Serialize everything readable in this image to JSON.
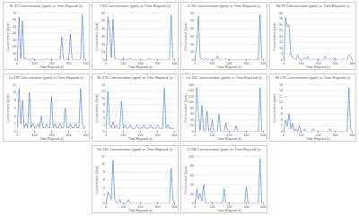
{
  "chart_data": [
    {
      "type": "line",
      "title": "Sc 45 Concentration (ppm) vs Time Elapsed (s)",
      "x_label": "Time Elapsed (s)",
      "y_label": "Concentration (ppm)",
      "color": "#4472c4",
      "grid": true,
      "x": [
        0,
        10,
        20,
        30,
        40,
        50,
        60,
        70,
        80,
        90,
        100,
        110,
        120,
        130,
        140,
        150,
        160,
        170,
        180,
        190,
        200,
        210,
        220,
        230,
        240,
        250,
        260,
        270,
        280,
        290,
        300,
        310,
        320,
        330,
        340,
        350,
        360,
        370,
        380,
        390,
        400
      ],
      "values": [
        0,
        64,
        2,
        58,
        1,
        3,
        0,
        1,
        0,
        2,
        1,
        0,
        1,
        0,
        0,
        1,
        0,
        2,
        0,
        0,
        1,
        0,
        0,
        1,
        0,
        0,
        34,
        1,
        0,
        2,
        0,
        38,
        1,
        0,
        0,
        1,
        0,
        2,
        67,
        1,
        0
      ],
      "xlim": [
        0,
        400
      ],
      "xticks": [
        0,
        100,
        200,
        300,
        400
      ],
      "ylim": [
        0,
        70
      ],
      "yticks": [
        0,
        10,
        20,
        30,
        40,
        50,
        60,
        70
      ]
    },
    {
      "type": "line",
      "title": "Y 89 Concentration (ppm) vs Time Elapsed (s)",
      "x_label": "Time Elapsed (s)",
      "y_label": "Concentration (ppm)",
      "color": "#4472c4",
      "grid": true,
      "x": [
        0,
        10,
        20,
        30,
        40,
        50,
        60,
        70,
        80,
        90,
        100,
        110,
        120,
        130,
        140,
        150,
        160,
        170,
        180,
        190,
        200,
        210,
        220,
        230,
        240,
        250,
        260,
        270,
        280,
        290,
        300,
        310,
        320,
        330,
        340,
        350,
        360,
        370,
        380,
        390,
        400
      ],
      "values": [
        0,
        55,
        40,
        3,
        52,
        2,
        1,
        0,
        1,
        0,
        3,
        0,
        1,
        0,
        2,
        0,
        0,
        1,
        0,
        0,
        0,
        1,
        0,
        0,
        0,
        2,
        0,
        1,
        0,
        0,
        0,
        1,
        0,
        0,
        0,
        1,
        0,
        0,
        57,
        2,
        0
      ],
      "xlim": [
        0,
        400
      ],
      "xticks": [
        0,
        100,
        200,
        300,
        400
      ],
      "ylim": [
        0,
        60
      ],
      "yticks": [
        0,
        10,
        20,
        30,
        40,
        50,
        60
      ]
    },
    {
      "type": "line",
      "title": "Zr 90 Concentration (ppm) vs Time Elapsed (s)",
      "x_label": "Time Elapsed (s)",
      "y_label": "Concentration (ppm)",
      "color": "#4472c4",
      "grid": true,
      "x": [
        0,
        10,
        20,
        30,
        40,
        50,
        60,
        70,
        80,
        90,
        100,
        110,
        120,
        130,
        140,
        150,
        160,
        170,
        180,
        190,
        200,
        210,
        220,
        230,
        240,
        250,
        260,
        270,
        280,
        290,
        300,
        310,
        320,
        330,
        340,
        350,
        360,
        370,
        380,
        390,
        400
      ],
      "values": [
        0,
        20,
        56,
        3,
        1,
        0,
        2,
        0,
        1,
        0,
        0,
        1,
        0,
        5,
        0,
        1,
        0,
        0,
        2,
        0,
        0,
        1,
        0,
        0,
        0,
        1,
        0,
        0,
        1,
        0,
        0,
        0,
        1,
        0,
        0,
        0,
        1,
        0,
        58,
        1,
        0
      ],
      "xlim": [
        0,
        400
      ],
      "xticks": [
        0,
        100,
        200,
        300,
        400
      ],
      "ylim": [
        0,
        60
      ],
      "yticks": [
        0,
        10,
        20,
        30,
        40,
        50,
        60
      ]
    },
    {
      "type": "line",
      "title": "Nb 93 Concentration (ppm) vs Time Elapsed (s)",
      "x_label": "Time Elapsed (s)",
      "y_label": "Concentration (ppm)",
      "color": "#4472c4",
      "grid": true,
      "x": [
        0,
        10,
        20,
        30,
        40,
        50,
        60,
        70,
        80,
        90,
        100,
        110,
        120,
        130,
        140,
        150,
        160,
        170,
        180,
        190,
        200,
        210,
        220,
        230,
        240,
        250,
        260,
        270,
        280,
        290,
        300,
        310,
        320,
        330,
        340,
        350,
        360,
        370,
        380,
        390,
        400
      ],
      "values": [
        0,
        36,
        28,
        30,
        5,
        2,
        1,
        0,
        4,
        1,
        0,
        0,
        2,
        0,
        3,
        0,
        0,
        1,
        0,
        0,
        1,
        0,
        0,
        0,
        3,
        0,
        0,
        1,
        0,
        0,
        2,
        0,
        0,
        0,
        0,
        1,
        0,
        0,
        4,
        3,
        0
      ],
      "xlim": [
        0,
        400
      ],
      "xticks": [
        0,
        100,
        200,
        300,
        400
      ],
      "ylim": [
        0,
        40
      ],
      "yticks": [
        0,
        5,
        10,
        15,
        20,
        25,
        30,
        35,
        40
      ]
    },
    {
      "type": "line",
      "title": "La 139 Concentration (ppm) vs Time Elapsed (s)",
      "x_label": "Time Elapsed (s)",
      "y_label": "Concentration (ppm)",
      "color": "#4472c4",
      "grid": true,
      "x": [
        0,
        10,
        20,
        30,
        40,
        50,
        60,
        70,
        80,
        90,
        100,
        110,
        120,
        130,
        140,
        150,
        160,
        170,
        180,
        190,
        200,
        210,
        220,
        230,
        240,
        250,
        260,
        270,
        280,
        290,
        300,
        310,
        320,
        330,
        340,
        350,
        360,
        370,
        380,
        390,
        400
      ],
      "values": [
        1,
        11,
        2,
        8,
        1,
        2,
        1,
        10,
        1,
        2,
        1,
        1,
        2,
        1,
        4,
        1,
        1,
        2,
        1,
        1,
        9,
        1,
        2,
        1,
        1,
        2,
        1,
        1,
        6,
        1,
        1,
        2,
        1,
        1,
        2,
        1,
        1,
        11,
        2,
        1,
        1
      ],
      "xlim": [
        0,
        400
      ],
      "xticks": [
        0,
        100,
        200,
        300,
        400
      ],
      "ylim": [
        0,
        12
      ],
      "yticks": [
        0,
        2,
        4,
        6,
        8,
        10,
        12
      ]
    },
    {
      "type": "line",
      "title": "Eu 153 Concentration (ppm) vs Time Elapsed (s)",
      "x_label": "Time Elapsed (s)",
      "y_label": "Concentration (ppm)",
      "color": "#4472c4",
      "grid": true,
      "x": [
        0,
        10,
        20,
        30,
        40,
        50,
        60,
        70,
        80,
        90,
        100,
        110,
        120,
        130,
        140,
        150,
        160,
        170,
        180,
        190,
        200,
        210,
        220,
        230,
        240,
        250,
        260,
        270,
        280,
        290,
        300,
        310,
        320,
        330,
        340,
        350,
        360,
        370,
        380,
        390,
        400
      ],
      "values": [
        1,
        12,
        2,
        1,
        3,
        1,
        2,
        1,
        1,
        9,
        1,
        2,
        1,
        1,
        2,
        1,
        1,
        1,
        2,
        1,
        1,
        1,
        2,
        1,
        1,
        1,
        2,
        1,
        1,
        1,
        2,
        1,
        1,
        1,
        13,
        1,
        2,
        1,
        1,
        1,
        1
      ],
      "xlim": [
        0,
        400
      ],
      "xticks": [
        0,
        100,
        200,
        300,
        400
      ],
      "ylim": [
        0,
        14
      ],
      "yticks": [
        0,
        2,
        4,
        6,
        8,
        10,
        12,
        14
      ]
    },
    {
      "type": "line",
      "title": "Ce 140 Concentration (ppm) vs Time Elapsed (s)",
      "x_label": "Time Elapsed (s)",
      "y_label": "Concentration (ppm)",
      "color": "#4472c4",
      "grid": true,
      "x": [
        0,
        10,
        20,
        30,
        40,
        50,
        60,
        70,
        80,
        90,
        100,
        110,
        120,
        130,
        140,
        150,
        160,
        170,
        180,
        190,
        200,
        210,
        220,
        230,
        240,
        250,
        260,
        270,
        280,
        290,
        300,
        310,
        320,
        330,
        340,
        350,
        360,
        370,
        380,
        390,
        400
      ],
      "values": [
        0,
        150,
        60,
        5,
        90,
        3,
        2,
        70,
        1,
        0,
        40,
        2,
        0,
        1,
        60,
        0,
        1,
        0,
        30,
        1,
        0,
        0,
        1,
        0,
        20,
        0,
        1,
        0,
        0,
        2,
        0,
        1,
        0,
        0,
        0,
        1,
        0,
        0,
        150,
        1,
        0
      ],
      "xlim": [
        0,
        400
      ],
      "xticks": [
        0,
        100,
        200,
        300,
        400
      ],
      "ylim": [
        0,
        160
      ],
      "yticks": [
        0,
        20,
        40,
        60,
        80,
        100,
        120,
        140,
        160
      ]
    },
    {
      "type": "line",
      "title": "Hf 178 Concentration (ppm) vs Time Elapsed (s)",
      "x_label": "Time Elapsed (s)",
      "y_label": "Concentration (ppm)",
      "color": "#4472c4",
      "grid": true,
      "x": [
        0,
        10,
        20,
        30,
        40,
        50,
        60,
        70,
        80,
        90,
        100,
        110,
        120,
        130,
        140,
        150,
        160,
        170,
        180,
        190,
        200,
        210,
        220,
        230,
        240,
        250,
        260,
        270,
        280,
        290,
        300,
        310,
        320,
        330,
        340,
        350,
        360,
        370,
        380,
        390,
        400
      ],
      "values": [
        0,
        4,
        2,
        6,
        1,
        3,
        0,
        1,
        0,
        2,
        0,
        0,
        1,
        0,
        0,
        0,
        0,
        1,
        0,
        0,
        0,
        0,
        0,
        0,
        0,
        0,
        0,
        1,
        0,
        0,
        0,
        0,
        0,
        0,
        0,
        0,
        0,
        0,
        15,
        1,
        0
      ],
      "xlim": [
        0,
        400
      ],
      "xticks": [
        0,
        100,
        200,
        300,
        400
      ],
      "ylim": [
        0,
        16
      ],
      "yticks": [
        0,
        2,
        4,
        6,
        8,
        10,
        12,
        14,
        16
      ]
    },
    {
      "type": "line",
      "title": "Ho 165 Concentration (ppm) vs Time Elapsed (s)",
      "x_label": "Time Elapsed (s)",
      "y_label": "Concentration (ppm)",
      "color": "#4472c4",
      "grid": true,
      "x": [
        0,
        10,
        20,
        30,
        40,
        50,
        60,
        70,
        80,
        90,
        100,
        110,
        120,
        130,
        140,
        150,
        160,
        170,
        180,
        190,
        200,
        210,
        220,
        230,
        240,
        250,
        260,
        270,
        280,
        290,
        300,
        310,
        320,
        330,
        340,
        350,
        360,
        370,
        380,
        390,
        400
      ],
      "values": [
        0,
        3,
        2,
        1,
        11,
        1,
        0,
        0,
        1,
        0,
        0,
        0,
        0,
        1,
        0,
        0,
        0,
        0,
        0,
        0,
        0,
        0,
        0,
        0,
        0,
        0,
        0,
        0,
        0,
        0,
        0,
        0,
        0,
        0,
        0,
        0,
        0,
        0,
        9,
        1,
        0
      ],
      "xlim": [
        0,
        400
      ],
      "xticks": [
        0,
        100,
        200,
        300,
        400
      ],
      "ylim": [
        0,
        12
      ],
      "yticks": [
        0,
        2,
        4,
        6,
        8,
        10,
        12
      ]
    },
    {
      "type": "line",
      "title": "U 238 Concentration (ppm) vs Time Elapsed (s)",
      "x_label": "Time Elapsed (s)",
      "y_label": "Concentration (ppm)",
      "color": "#4472c4",
      "grid": true,
      "x": [
        0,
        10,
        20,
        30,
        40,
        50,
        60,
        70,
        80,
        90,
        100,
        110,
        120,
        130,
        140,
        150,
        160,
        170,
        180,
        190,
        200,
        210,
        220,
        230,
        240,
        250,
        260,
        270,
        280,
        290,
        300,
        310,
        320,
        330,
        340,
        350,
        360,
        370,
        380,
        390,
        400
      ],
      "values": [
        0,
        30,
        10,
        20,
        5,
        40,
        2,
        1,
        0,
        3,
        1,
        0,
        2,
        1,
        0,
        1,
        0,
        30,
        0,
        1,
        0,
        0,
        1,
        0,
        0,
        0,
        0,
        1,
        0,
        0,
        35,
        0,
        0,
        0,
        1,
        0,
        0,
        1,
        95,
        1,
        0
      ],
      "xlim": [
        0,
        400
      ],
      "xticks": [
        0,
        100,
        200,
        300,
        400
      ],
      "ylim": [
        0,
        100
      ],
      "yticks": [
        0,
        20,
        40,
        60,
        80,
        100
      ]
    }
  ]
}
